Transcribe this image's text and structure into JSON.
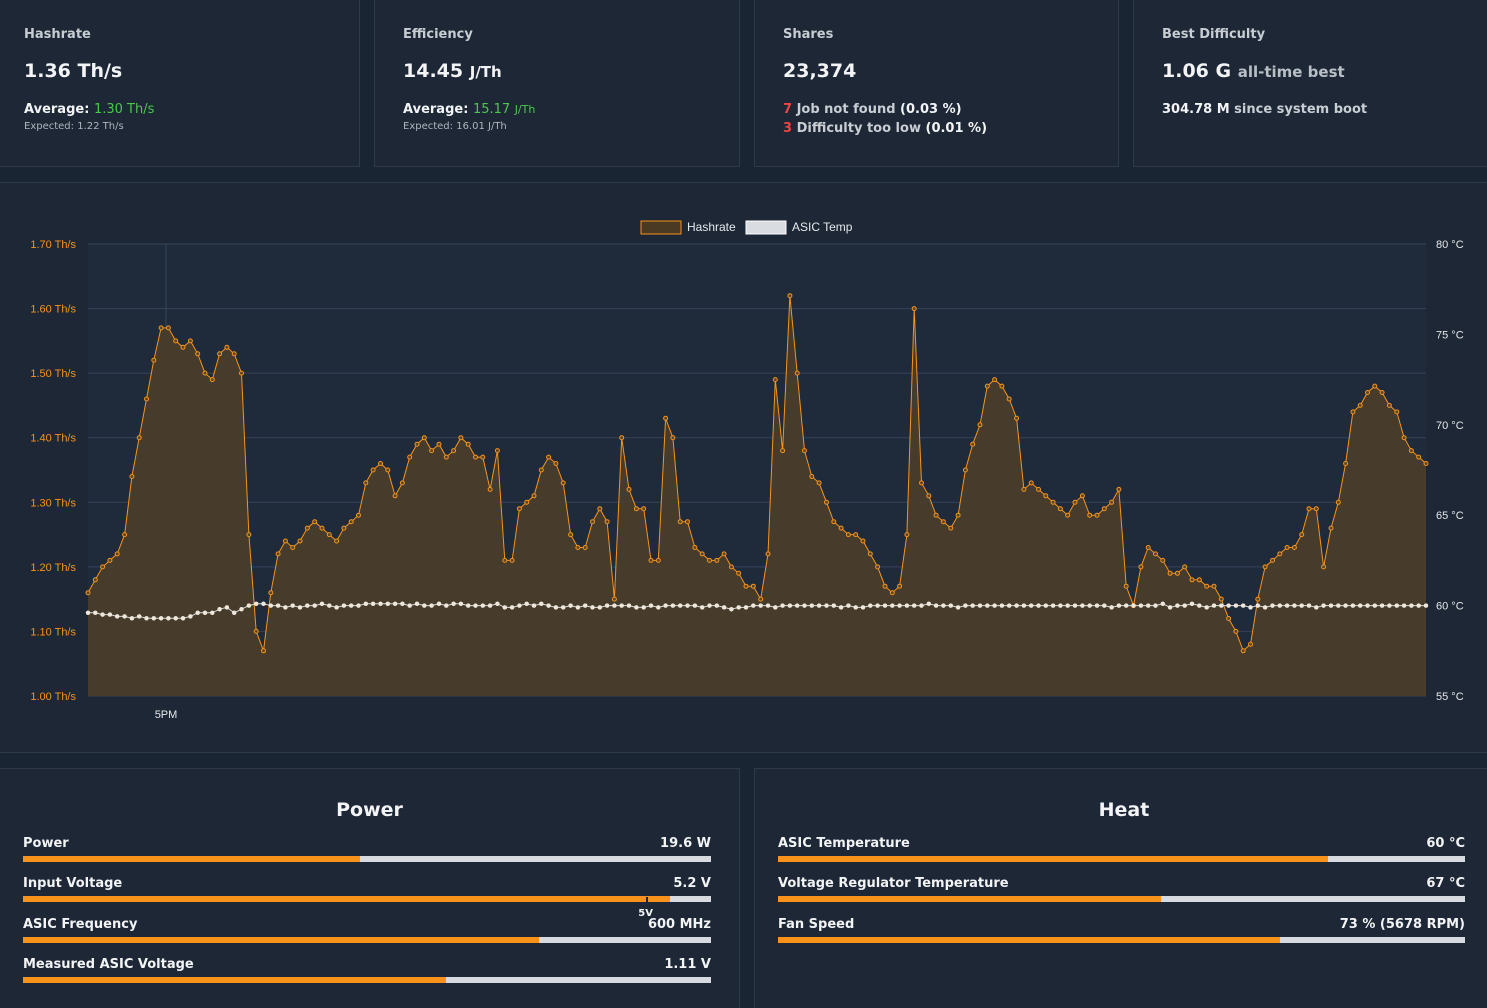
{
  "cards": {
    "hashrate": {
      "title": "Hashrate",
      "value": "1.36 Th/s",
      "avg_label": "Average:",
      "avg_value": "1.30 Th/s",
      "expected": "Expected: 1.22 Th/s"
    },
    "efficiency": {
      "title": "Efficiency",
      "value": "14.45",
      "unit": "J/Th",
      "avg_label": "Average:",
      "avg_value": "15.17",
      "avg_unit": "J/Th",
      "expected": "Expected: 16.01 J/Th"
    },
    "shares": {
      "title": "Shares",
      "value": "23,374",
      "reject1_count": "7",
      "reject1_label": "Job not found",
      "reject1_pct": "(0.03 %)",
      "reject2_count": "3",
      "reject2_label": "Difficulty too low",
      "reject2_pct": "(0.01 %)"
    },
    "best_difficulty": {
      "title": "Best Difficulty",
      "value": "1.06 G",
      "value_suffix": "all-time best",
      "since_value": "304.78 M",
      "since_label": "since system boot"
    }
  },
  "colors": {
    "accent": "#f7931a",
    "temp_line": "#d9dce0",
    "background": "#1d2735",
    "good": "#4cc84c",
    "bad": "#ef4444"
  },
  "chart_data": {
    "type": "line",
    "legend": [
      "Hashrate",
      "ASIC Temp"
    ],
    "legend_position": "top-center",
    "x_tick_labels": [
      "5PM"
    ],
    "y_left": {
      "min": 1.0,
      "max": 1.7,
      "tick_labels": [
        "1.70 Th/s",
        "1.60 Th/s",
        "1.50 Th/s",
        "1.40 Th/s",
        "1.30 Th/s",
        "1.20 Th/s",
        "1.10 Th/s",
        "1.00 Th/s"
      ]
    },
    "y_right": {
      "min": 55,
      "max": 80,
      "tick_labels": [
        "80 °C",
        "75 °C",
        "70 °C",
        "65 °C",
        "60 °C",
        "55 °C"
      ]
    },
    "grid": true,
    "series": [
      {
        "name": "Hashrate",
        "axis": "left",
        "fill": true,
        "values": [
          1.16,
          1.18,
          1.2,
          1.21,
          1.22,
          1.25,
          1.34,
          1.4,
          1.46,
          1.52,
          1.57,
          1.57,
          1.55,
          1.54,
          1.55,
          1.53,
          1.5,
          1.49,
          1.53,
          1.54,
          1.53,
          1.5,
          1.25,
          1.1,
          1.07,
          1.16,
          1.22,
          1.24,
          1.23,
          1.24,
          1.26,
          1.27,
          1.26,
          1.25,
          1.24,
          1.26,
          1.27,
          1.28,
          1.33,
          1.35,
          1.36,
          1.35,
          1.31,
          1.33,
          1.37,
          1.39,
          1.4,
          1.38,
          1.39,
          1.37,
          1.38,
          1.4,
          1.39,
          1.37,
          1.37,
          1.32,
          1.38,
          1.21,
          1.21,
          1.29,
          1.3,
          1.31,
          1.35,
          1.37,
          1.36,
          1.33,
          1.25,
          1.23,
          1.23,
          1.27,
          1.29,
          1.27,
          1.15,
          1.4,
          1.32,
          1.29,
          1.29,
          1.21,
          1.21,
          1.43,
          1.4,
          1.27,
          1.27,
          1.23,
          1.22,
          1.21,
          1.21,
          1.22,
          1.2,
          1.19,
          1.17,
          1.17,
          1.15,
          1.22,
          1.49,
          1.38,
          1.62,
          1.5,
          1.38,
          1.34,
          1.33,
          1.3,
          1.27,
          1.26,
          1.25,
          1.25,
          1.24,
          1.22,
          1.2,
          1.17,
          1.16,
          1.17,
          1.25,
          1.6,
          1.33,
          1.31,
          1.28,
          1.27,
          1.26,
          1.28,
          1.35,
          1.39,
          1.42,
          1.48,
          1.49,
          1.48,
          1.46,
          1.43,
          1.32,
          1.33,
          1.32,
          1.31,
          1.3,
          1.29,
          1.28,
          1.3,
          1.31,
          1.28,
          1.28,
          1.29,
          1.3,
          1.32,
          1.17,
          1.14,
          1.2,
          1.23,
          1.22,
          1.21,
          1.19,
          1.19,
          1.2,
          1.18,
          1.18,
          1.17,
          1.17,
          1.15,
          1.12,
          1.1,
          1.07,
          1.08,
          1.15,
          1.2,
          1.21,
          1.22,
          1.23,
          1.23,
          1.25,
          1.29,
          1.29,
          1.2,
          1.26,
          1.3,
          1.36,
          1.44,
          1.45,
          1.47,
          1.48,
          1.47,
          1.45,
          1.44,
          1.4,
          1.38,
          1.37,
          1.36
        ]
      },
      {
        "name": "ASIC Temp",
        "axis": "right",
        "fill": false,
        "values": [
          59.6,
          59.6,
          59.5,
          59.5,
          59.4,
          59.4,
          59.3,
          59.4,
          59.3,
          59.3,
          59.3,
          59.3,
          59.3,
          59.3,
          59.4,
          59.6,
          59.6,
          59.6,
          59.8,
          59.9,
          59.6,
          59.8,
          60.0,
          60.1,
          60.1,
          60.0,
          60.0,
          59.9,
          60.0,
          59.9,
          60.0,
          60.0,
          60.1,
          60.0,
          59.9,
          60.0,
          60.0,
          60.0,
          60.1,
          60.1,
          60.1,
          60.1,
          60.1,
          60.1,
          60.0,
          60.1,
          60.0,
          60.0,
          60.1,
          60.0,
          60.1,
          60.1,
          60.0,
          60.0,
          60.0,
          60.0,
          60.1,
          59.9,
          59.9,
          60.0,
          60.1,
          60.0,
          60.1,
          60.0,
          59.9,
          59.9,
          60.0,
          59.9,
          60.0,
          59.9,
          59.9,
          60.0,
          60.0,
          60.0,
          60.0,
          59.9,
          59.9,
          60.0,
          59.9,
          60.0,
          60.0,
          60.0,
          60.0,
          60.0,
          59.9,
          60.0,
          60.0,
          59.9,
          59.8,
          59.9,
          59.9,
          60.0,
          60.0,
          60.0,
          59.9,
          60.0,
          60.0,
          60.0,
          60.0,
          60.0,
          60.0,
          60.0,
          60.0,
          59.9,
          60.0,
          59.9,
          59.9,
          60.0,
          60.0,
          60.0,
          60.0,
          60.0,
          60.0,
          60.0,
          60.0,
          60.1,
          60.0,
          60.0,
          60.0,
          59.9,
          60.0,
          60.0,
          60.0,
          60.0,
          60.0,
          60.0,
          60.0,
          60.0,
          60.0,
          60.0,
          60.0,
          60.0,
          60.0,
          60.0,
          60.0,
          60.0,
          60.0,
          60.0,
          60.0,
          60.0,
          59.9,
          60.0,
          60.0,
          60.0,
          60.0,
          60.0,
          60.0,
          60.1,
          59.9,
          60.0,
          60.0,
          60.1,
          60.0,
          59.9,
          60.0,
          60.0,
          60.0,
          60.0,
          60.0,
          59.9,
          60.0,
          59.9,
          60.0,
          60.0,
          60.0,
          60.0,
          60.0,
          60.0,
          59.9,
          60.0,
          60.0,
          60.0,
          60.0,
          60.0,
          60.0,
          60.0,
          60.0,
          60.0,
          60.0,
          60.0,
          60.0,
          60.0,
          60.0,
          60.0
        ]
      }
    ]
  },
  "power": {
    "title": "Power",
    "rows": [
      {
        "label": "Power",
        "value": "19.6 W",
        "fraction": 0.49
      },
      {
        "label": "Input Voltage",
        "value": "5.2 V",
        "fraction": 0.94,
        "marker_label": "5V",
        "marker_fraction": 0.905
      },
      {
        "label": "ASIC Frequency",
        "value": "600 MHz",
        "fraction": 0.75
      },
      {
        "label": "Measured ASIC Voltage",
        "value": "1.11 V",
        "fraction": 0.615
      }
    ]
  },
  "heat": {
    "title": "Heat",
    "rows": [
      {
        "label": "ASIC Temperature",
        "value": "60 °C",
        "fraction": 0.8
      },
      {
        "label": "Voltage Regulator Temperature",
        "value": "67 °C",
        "fraction": 0.558
      },
      {
        "label": "Fan Speed",
        "value": "73 % (5678 RPM)",
        "fraction": 0.73
      }
    ]
  }
}
